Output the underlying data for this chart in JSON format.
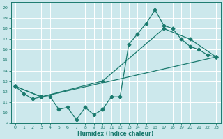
{
  "title": "",
  "xlabel": "Humidex (Indice chaleur)",
  "bg_color": "#cce8ec",
  "line_color": "#1a7a6e",
  "grid_color": "#ffffff",
  "xlim": [
    -0.5,
    23.5
  ],
  "ylim": [
    9,
    20.5
  ],
  "yticks": [
    9,
    10,
    11,
    12,
    13,
    14,
    15,
    16,
    17,
    18,
    19,
    20
  ],
  "xticks": [
    0,
    1,
    2,
    3,
    4,
    5,
    6,
    7,
    8,
    9,
    10,
    11,
    12,
    13,
    14,
    15,
    16,
    17,
    18,
    19,
    20,
    21,
    22,
    23
  ],
  "line1_x": [
    0,
    1,
    2,
    3,
    4,
    5,
    6,
    7,
    8,
    9,
    10,
    11,
    12,
    13,
    14,
    15,
    16,
    17,
    18,
    19,
    20,
    21,
    22,
    23
  ],
  "line1_y": [
    12.5,
    11.8,
    11.3,
    11.5,
    11.5,
    10.3,
    10.5,
    9.3,
    10.5,
    9.8,
    10.3,
    11.5,
    11.5,
    16.5,
    17.5,
    18.5,
    19.8,
    18.3,
    18.0,
    17.0,
    16.3,
    16.0,
    15.5,
    15.3
  ],
  "line2_x": [
    0,
    3,
    10,
    17,
    20,
    23
  ],
  "line2_y": [
    12.5,
    11.5,
    13.0,
    18.0,
    17.0,
    15.3
  ],
  "line3_x": [
    0,
    3,
    23
  ],
  "line3_y": [
    12.5,
    11.5,
    15.3
  ]
}
